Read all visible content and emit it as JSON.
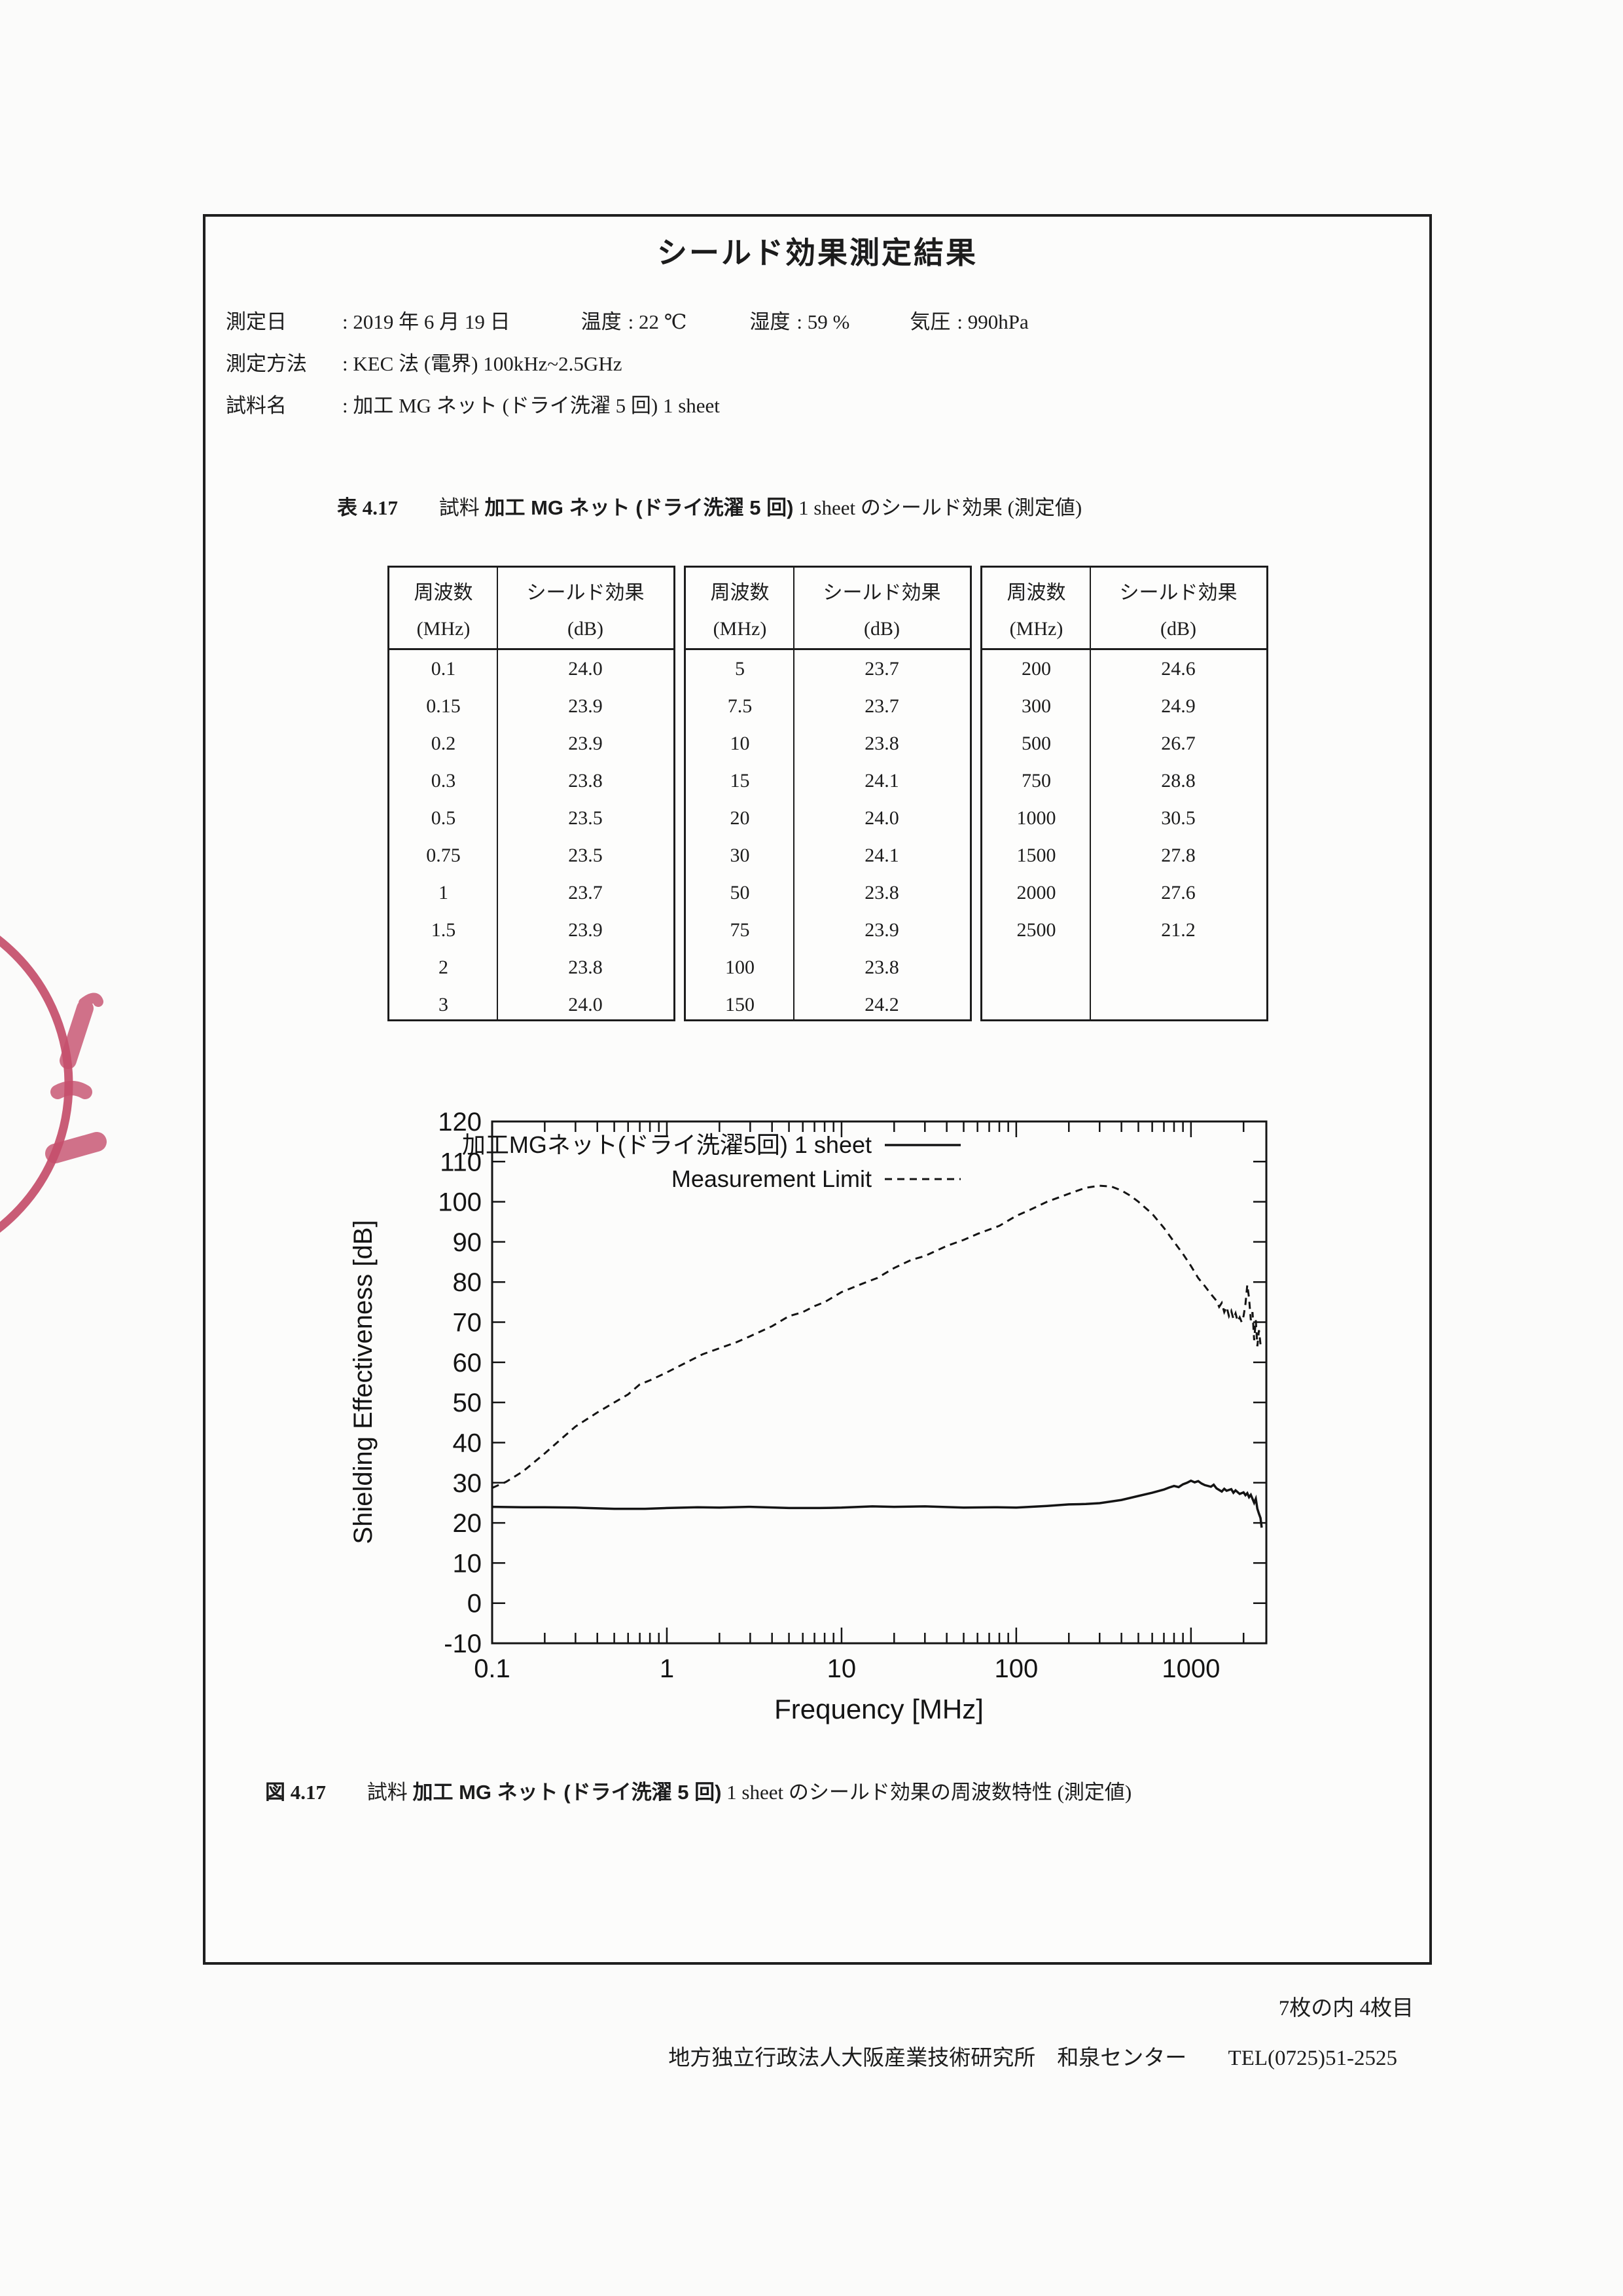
{
  "page": {
    "title": "シールド効果測定結果",
    "info": {
      "date_label": "測定日",
      "date_value": ": 2019 年 6 月 19 日",
      "temp_label": "温度",
      "temp_value": ": 22 ℃",
      "humidity_label": "湿度",
      "humidity_value": ": 59 %",
      "pressure_label": "気圧",
      "pressure_value": ": 990hPa",
      "method_label": "測定方法",
      "method_value": ": KEC 法 (電界) 100kHz~2.5GHz",
      "sample_label": "試料名",
      "sample_value": ": 加工 MG ネット (ドライ洗濯 5 回) 1 sheet"
    }
  },
  "table": {
    "caption": {
      "prefix": "表 4.17",
      "pre_name": "試料",
      "name_jp": "加工 MG ネット (ドライ洗濯 5 回)",
      "name_en": "1 sheet",
      "suffix": "のシールド効果 (測定値)"
    },
    "col_headers": {
      "freq_line1": "周波数",
      "freq_line2": "(MHz)",
      "se_line1": "シールド効果",
      "se_line2": "(dB)"
    },
    "groups": [
      {
        "rows": [
          [
            "0.1",
            "24.0"
          ],
          [
            "0.15",
            "23.9"
          ],
          [
            "0.2",
            "23.9"
          ],
          [
            "0.3",
            "23.8"
          ],
          [
            "0.5",
            "23.5"
          ],
          [
            "0.75",
            "23.5"
          ],
          [
            "1",
            "23.7"
          ],
          [
            "1.5",
            "23.9"
          ],
          [
            "2",
            "23.8"
          ],
          [
            "3",
            "24.0"
          ]
        ]
      },
      {
        "rows": [
          [
            "5",
            "23.7"
          ],
          [
            "7.5",
            "23.7"
          ],
          [
            "10",
            "23.8"
          ],
          [
            "15",
            "24.1"
          ],
          [
            "20",
            "24.0"
          ],
          [
            "30",
            "24.1"
          ],
          [
            "50",
            "23.8"
          ],
          [
            "75",
            "23.9"
          ],
          [
            "100",
            "23.8"
          ],
          [
            "150",
            "24.2"
          ]
        ]
      },
      {
        "rows": [
          [
            "200",
            "24.6"
          ],
          [
            "300",
            "24.9"
          ],
          [
            "500",
            "26.7"
          ],
          [
            "750",
            "28.8"
          ],
          [
            "1000",
            "30.5"
          ],
          [
            "1500",
            "27.8"
          ],
          [
            "2000",
            "27.6"
          ],
          [
            "2500",
            "21.2"
          ]
        ]
      }
    ]
  },
  "figure": {
    "caption": {
      "prefix": "図 4.17",
      "pre_name": "試料",
      "name_jp": "加工 MG ネット (ドライ洗濯 5 回)",
      "name_en": "1 sheet",
      "suffix": "のシールド効果の周波数特性 (測定値)"
    }
  },
  "chart_data": {
    "type": "line",
    "xlabel": "Frequency [MHz]",
    "ylabel": "Shielding Effectiveness [dB]",
    "xscale": "log",
    "xlim": [
      0.1,
      2700
    ],
    "ylim": [
      -10,
      120
    ],
    "ytick_step": 10,
    "xticks_labeled": [
      "0.1",
      "1",
      "10",
      "100",
      "1000"
    ],
    "grid": false,
    "legend_position": "top-left-inside",
    "series": [
      {
        "name": "加工MGネット(ドライ洗濯5回) 1 sheet",
        "style": "solid",
        "points": [
          [
            0.1,
            24
          ],
          [
            0.15,
            23.9
          ],
          [
            0.2,
            23.9
          ],
          [
            0.3,
            23.8
          ],
          [
            0.5,
            23.5
          ],
          [
            0.75,
            23.5
          ],
          [
            1,
            23.7
          ],
          [
            1.5,
            23.9
          ],
          [
            2,
            23.8
          ],
          [
            3,
            24
          ],
          [
            5,
            23.7
          ],
          [
            7.5,
            23.7
          ],
          [
            10,
            23.8
          ],
          [
            15,
            24.1
          ],
          [
            20,
            24
          ],
          [
            30,
            24.1
          ],
          [
            50,
            23.8
          ],
          [
            75,
            23.9
          ],
          [
            100,
            23.8
          ],
          [
            150,
            24.2
          ],
          [
            200,
            24.6
          ],
          [
            250,
            24.7
          ],
          [
            300,
            24.9
          ],
          [
            400,
            25.7
          ],
          [
            500,
            26.7
          ],
          [
            600,
            27.5
          ],
          [
            700,
            28.3
          ],
          [
            750,
            28.8
          ],
          [
            800,
            29.2
          ],
          [
            850,
            28.9
          ],
          [
            900,
            29.6
          ],
          [
            950,
            30
          ],
          [
            1000,
            30.5
          ],
          [
            1050,
            30.1
          ],
          [
            1100,
            30.4
          ],
          [
            1150,
            29.8
          ],
          [
            1200,
            29.4
          ],
          [
            1300,
            29
          ],
          [
            1350,
            29.5
          ],
          [
            1400,
            28.6
          ],
          [
            1500,
            27.8
          ],
          [
            1550,
            28.5
          ],
          [
            1600,
            28
          ],
          [
            1700,
            28.4
          ],
          [
            1750,
            27.5
          ],
          [
            1800,
            28.1
          ],
          [
            1900,
            27.2
          ],
          [
            2000,
            27.6
          ],
          [
            2050,
            26.9
          ],
          [
            2100,
            27.4
          ],
          [
            2150,
            26.4
          ],
          [
            2200,
            27
          ],
          [
            2300,
            25
          ],
          [
            2350,
            26
          ],
          [
            2400,
            23.5
          ],
          [
            2450,
            22.3
          ],
          [
            2500,
            21.2
          ],
          [
            2540,
            18.8
          ]
        ]
      },
      {
        "name": "Measurement Limit",
        "style": "dashed",
        "points": [
          [
            0.1,
            28.7
          ],
          [
            0.12,
            30.2
          ],
          [
            0.15,
            32.8
          ],
          [
            0.2,
            37.3
          ],
          [
            0.25,
            41
          ],
          [
            0.3,
            44
          ],
          [
            0.4,
            47.5
          ],
          [
            0.5,
            50
          ],
          [
            0.6,
            52
          ],
          [
            0.7,
            54.5
          ],
          [
            0.8,
            55.5
          ],
          [
            1,
            57.5
          ],
          [
            1.3,
            60
          ],
          [
            1.6,
            62
          ],
          [
            2,
            63.5
          ],
          [
            2.5,
            65
          ],
          [
            3,
            66.5
          ],
          [
            4,
            69
          ],
          [
            5,
            71.5
          ],
          [
            6,
            72.5
          ],
          [
            7,
            74
          ],
          [
            8,
            75
          ],
          [
            10,
            77.5
          ],
          [
            13,
            79.5
          ],
          [
            16,
            81
          ],
          [
            20,
            83.5
          ],
          [
            25,
            85.5
          ],
          [
            30,
            86.5
          ],
          [
            40,
            89
          ],
          [
            50,
            90.5
          ],
          [
            60,
            92
          ],
          [
            80,
            94
          ],
          [
            100,
            96.5
          ],
          [
            120,
            98
          ],
          [
            150,
            100
          ],
          [
            200,
            102
          ],
          [
            250,
            103.5
          ],
          [
            300,
            104
          ],
          [
            350,
            103.8
          ],
          [
            400,
            102.8
          ],
          [
            450,
            101.5
          ],
          [
            500,
            100
          ],
          [
            600,
            97
          ],
          [
            700,
            93.5
          ],
          [
            800,
            90
          ],
          [
            900,
            87
          ],
          [
            1000,
            84
          ],
          [
            1100,
            81
          ],
          [
            1200,
            79
          ],
          [
            1300,
            77
          ],
          [
            1400,
            75.3
          ],
          [
            1450,
            73.8
          ],
          [
            1500,
            74.8
          ],
          [
            1550,
            72.5
          ],
          [
            1600,
            73.8
          ],
          [
            1650,
            71.5
          ],
          [
            1700,
            72.8
          ],
          [
            1750,
            70.8
          ],
          [
            1800,
            72.2
          ],
          [
            1850,
            70.2
          ],
          [
            1900,
            71.2
          ],
          [
            1950,
            70
          ],
          [
            2000,
            71.5
          ],
          [
            2050,
            74.5
          ],
          [
            2100,
            79.3
          ],
          [
            2150,
            76
          ],
          [
            2200,
            70.5
          ],
          [
            2250,
            72.5
          ],
          [
            2300,
            65.5
          ],
          [
            2350,
            70.5
          ],
          [
            2400,
            64
          ],
          [
            2450,
            68
          ],
          [
            2500,
            64.5
          ]
        ]
      }
    ]
  },
  "footer": {
    "page_indicator": "7枚の内 4枚目",
    "organization": "地方独立行政法人大阪産業技術研究所　和泉センター",
    "tel": "TEL(0725)51-2525"
  },
  "stamp": {
    "color": "#c64f6d"
  }
}
